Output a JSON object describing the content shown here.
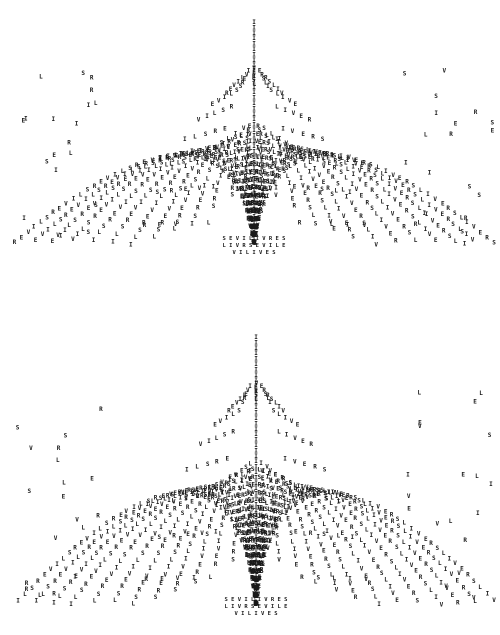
{
  "artwork": {
    "glyph_alphabet": [
      "L",
      "I",
      "V",
      "E",
      "R",
      "S"
    ],
    "core_lines": [
      "S E V I L I V R E S",
      "L I V R S E V I L E",
      "V I L I V E S"
    ],
    "panels": [
      "upper-fountain",
      "lower-fountain"
    ],
    "ink_color": "#1a1a1a",
    "paper_color": "#ffffff"
  }
}
